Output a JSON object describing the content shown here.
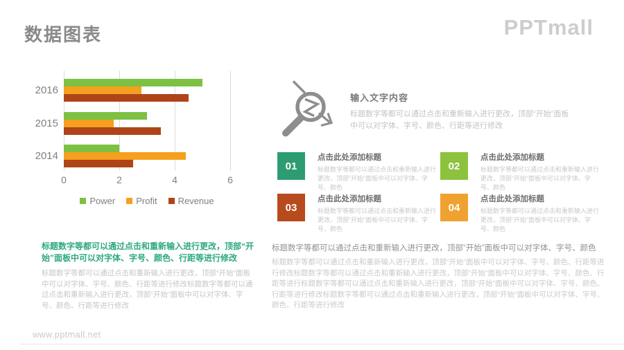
{
  "page": {
    "title": "数据图表",
    "logo": "PPTmall",
    "footer_url": "www.pptmall.net"
  },
  "chart_data": {
    "type": "bar",
    "orientation": "horizontal",
    "categories": [
      "2016",
      "2015",
      "2014"
    ],
    "series": [
      {
        "name": "Power",
        "color": "#7dc142",
        "values": [
          5.0,
          3.0,
          2.0
        ]
      },
      {
        "name": "Profit",
        "color": "#f5a01e",
        "values": [
          2.8,
          1.8,
          4.4
        ]
      },
      {
        "name": "Revenue",
        "color": "#af4418",
        "values": [
          4.5,
          3.5,
          2.5
        ]
      }
    ],
    "xlim": [
      0,
      6
    ],
    "x_ticks": [
      "0",
      "2",
      "4",
      "6"
    ],
    "grid": "vertical",
    "legend_position": "bottom"
  },
  "info_panel": {
    "title": "输入文字内容",
    "body": "标题数字等都可以通过点击和重新输入进行更改，顶部“开始”面板中可以对字体、字号、颜色、行距等进行修改"
  },
  "numbered_items": [
    {
      "number": "01",
      "color": "#2e9c72",
      "title": "点击此处添加标题",
      "body": "标题数字等都可以通过点击和重新输入进行更改，顶部“开始”面板中可以对字体、字号、颜色"
    },
    {
      "number": "02",
      "color": "#8cc23e",
      "title": "点击此处添加标题",
      "body": "标题数字等都可以通过点击和重新输入进行更改，顶部“开始”面板中可以对字体、字号、颜色"
    },
    {
      "number": "03",
      "color": "#b84b1d",
      "title": "点击此处添加标题",
      "body": "标题数字等都可以通过点击和重新输入进行更改，顶部“开始”面板中可以对字体、字号、颜色"
    },
    {
      "number": "04",
      "color": "#f0a231",
      "title": "点击此处添加标题",
      "body": "标题数字等都可以通过点击和重新输入进行更改，顶部“开始”面板中可以对字体、字号、颜色"
    }
  ],
  "bottom_left": {
    "highlight": "标题数字等都可以通过点击和重新输入进行更改，顶部“开始”面板中可以对字体、字号、颜色、行距等进行修改",
    "body": "标题数字等都可以通过点击和重新输入进行更改，顶部“开始”面板中可以对字体、字号、颜色、行距等进行修改标题数字等都可以通过点击和重新输入进行更改，顶部“开始”面板中可以对字体、字号、颜色、行距等进行修改"
  },
  "bottom_right": {
    "lead": "标题数字等都可以通过点击和重新输入进行更改，顶部“开始”面板中可以对字体、字号、颜色",
    "body": "标题数字等都可以通过点击和重新输入进行更改，顶部“开始”面板中可以对字体、字号、颜色、行距等进行修改标题数字等都可以通过点击和重新输入进行更改，顶部“开始”面板中可以对字体、字号、颜色、行距等进行标题数字等都可以通过点击和重新输入进行更改，顶部“开始”面板中可以对字体、字号、颜色、行距等进行修改标题数字等都可以通过点击和重新输入进行更改，顶部“开始”面板中可以对字体、字号、颜色、行距等进行修改"
  }
}
